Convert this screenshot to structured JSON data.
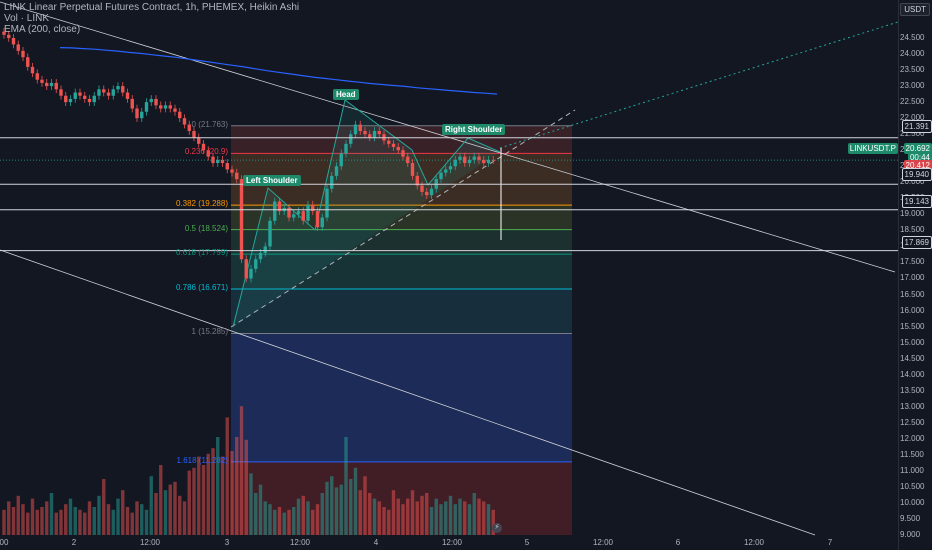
{
  "legend": {
    "title": "LINK Linear Perpetual Futures Contract, 1h, PHEMEX, Heikin Ashi",
    "line2": "Vol · LINK",
    "line3": "EMA (200, close)"
  },
  "price_scale": {
    "currency": "USDT",
    "ticks": [
      "24.500",
      "24.000",
      "23.500",
      "23.000",
      "22.500",
      "22.000",
      "21.500",
      "21.000",
      "20.500",
      "20.000",
      "19.500",
      "19.000",
      "18.500",
      "18.000",
      "17.500",
      "17.000",
      "16.500",
      "16.000",
      "15.500",
      "15.000",
      "14.500",
      "14.000",
      "13.500",
      "13.000",
      "12.500",
      "12.000",
      "11.500",
      "11.000",
      "10.500",
      "10.000",
      "9.500",
      "9.000"
    ],
    "tags": {
      "h1": "21.391",
      "symbol": "LINKUSDT.P",
      "last": "20.692",
      "countdown": "00:44",
      "prev": "20.412",
      "h2": "19.940",
      "h3": "19.143",
      "h4": "17.869"
    }
  },
  "time_axis": [
    "00",
    "2",
    "12:00",
    "3",
    "12:00",
    "4",
    "12:00",
    "5",
    "12:00",
    "6",
    "12:00",
    "7"
  ],
  "fib_levels": [
    {
      "label": "0 (21.763)",
      "price": 21.763,
      "color": "#787b86"
    },
    {
      "label": "0.236 (20.9)",
      "price": 20.9,
      "color": "#f23645"
    },
    {
      "label": "0.382 (19.288)",
      "price": 19.288,
      "color": "#ff9800"
    },
    {
      "label": "0.5 (18.524)",
      "price": 18.524,
      "color": "#4caf50"
    },
    {
      "label": "0.618 (17.759)",
      "price": 17.759,
      "color": "#089981"
    },
    {
      "label": "0.786 (16.671)",
      "price": 16.671,
      "color": "#00bcd4"
    },
    {
      "label": "1 (15.285)",
      "price": 15.285,
      "color": "#787b86"
    },
    {
      "label": "1.618 (11.282)",
      "price": 11.282,
      "color": "#2962ff"
    }
  ],
  "pattern_labels": {
    "head": "Head",
    "left_shoulder": "Left Shoulder",
    "right_shoulder": "Right Shoulder"
  },
  "colors": {
    "up": "#26a69a",
    "down": "#ef5350",
    "ema": "#2962ff"
  },
  "chart_data": {
    "type": "candlestick",
    "symbol": "LINK Linear Perpetual Futures Contract",
    "interval": "1h",
    "exchange": "PHEMEX",
    "style": "Heikin Ashi",
    "ylim": [
      9.0,
      25.0
    ],
    "close_series": [
      24.6,
      24.5,
      24.3,
      24.1,
      23.9,
      23.6,
      23.4,
      23.2,
      23.1,
      23.0,
      23.1,
      22.9,
      22.7,
      22.5,
      22.6,
      22.8,
      22.7,
      22.6,
      22.5,
      22.7,
      22.9,
      22.8,
      22.7,
      22.9,
      23.0,
      22.8,
      22.6,
      22.3,
      22.0,
      22.2,
      22.5,
      22.6,
      22.4,
      22.3,
      22.4,
      22.3,
      22.2,
      22.0,
      21.8,
      21.6,
      21.4,
      21.2,
      21.0,
      20.8,
      20.6,
      20.7,
      20.6,
      20.4,
      20.3,
      20.1,
      17.6,
      17.0,
      17.3,
      17.6,
      17.8,
      18.0,
      18.8,
      19.4,
      19.1,
      19.2,
      18.9,
      19.0,
      19.1,
      18.8,
      19.3,
      19.1,
      18.6,
      18.9,
      19.8,
      20.2,
      20.5,
      20.9,
      21.2,
      21.5,
      21.8,
      21.6,
      21.5,
      21.4,
      21.6,
      21.5,
      21.3,
      21.2,
      21.1,
      21.0,
      20.8,
      20.6,
      20.2,
      19.9,
      19.7,
      19.6,
      19.8,
      20.1,
      20.3,
      20.4,
      20.5,
      20.7,
      20.8,
      20.6,
      20.7,
      20.8,
      20.7,
      20.6,
      20.7,
      20.692
    ],
    "ema_200": [
      24.2,
      24.19,
      24.17,
      24.15,
      24.12,
      24.09,
      24.05,
      24.02,
      23.98,
      23.94,
      23.9,
      23.85,
      23.8,
      23.75,
      23.7,
      23.65,
      23.6,
      23.54,
      23.48,
      23.43,
      23.38,
      23.33,
      23.28,
      23.24,
      23.2,
      23.16,
      23.12,
      23.08,
      23.05,
      23.02,
      22.99,
      22.95,
      22.92,
      22.89,
      22.86,
      22.83,
      22.8,
      22.78,
      22.75
    ],
    "volume": [
      0.9,
      1.2,
      1.0,
      1.4,
      1.1,
      0.8,
      1.3,
      0.9,
      1.0,
      1.2,
      1.5,
      0.8,
      0.9,
      1.1,
      1.3,
      1.0,
      0.9,
      0.8,
      1.2,
      1.0,
      1.4,
      2.0,
      1.1,
      0.9,
      1.3,
      1.6,
      1.0,
      0.8,
      1.2,
      1.1,
      0.9,
      2.1,
      1.5,
      2.5,
      1.6,
      1.8,
      1.9,
      1.4,
      1.2,
      2.3,
      2.4,
      2.8,
      2.5,
      2.9,
      3.1,
      3.5,
      2.8,
      4.2,
      3.0,
      3.5,
      4.6,
      3.4,
      2.2,
      1.5,
      1.8,
      1.2,
      1.1,
      0.9,
      1.0,
      0.8,
      0.9,
      1.0,
      1.3,
      1.4,
      1.2,
      0.9,
      1.1,
      1.5,
      1.9,
      2.1,
      1.7,
      1.8,
      3.5,
      2.0,
      2.4,
      1.6,
      2.1,
      1.5,
      1.3,
      1.2,
      1.0,
      0.9,
      1.6,
      1.3,
      1.1,
      1.3,
      1.6,
      1.2,
      1.4,
      1.5,
      1.0,
      1.3,
      1.1,
      1.2,
      1.4,
      1.1,
      1.3,
      1.2,
      1.1,
      1.5,
      1.3,
      1.2,
      1.1,
      0.9
    ]
  }
}
